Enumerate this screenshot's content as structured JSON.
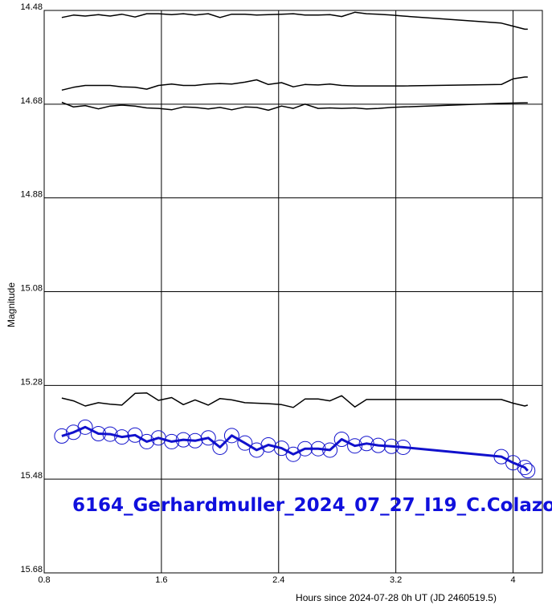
{
  "chart_data": {
    "type": "line",
    "title": "6164_Gerhardmuller_2024_07_27_I19_C.Colazo",
    "xlabel": "Hours since 2024-07-28 0h UT (JD 2460519.5)",
    "ylabel": "Magnitude",
    "xlim": [
      0.8,
      4.2
    ],
    "ylim": [
      14.48,
      15.68
    ],
    "y_inverted": true,
    "grid": true,
    "x_ticks": [
      "0.8",
      "1.6",
      "2.4",
      "3.2",
      "4"
    ],
    "y_ticks": [
      "14.48",
      "14.68",
      "14.88",
      "15.08",
      "15.28",
      "15.48",
      "15.68"
    ],
    "series": [
      {
        "color": "#000000",
        "x": [
          0.92,
          1.0,
          1.08,
          1.17,
          1.25,
          1.33,
          1.42,
          1.5,
          1.58,
          1.67,
          1.75,
          1.83,
          1.92,
          2.0,
          2.08,
          2.17,
          2.25,
          2.33,
          2.42,
          2.5,
          2.58,
          2.67,
          2.75,
          2.83,
          2.92,
          3.0,
          3.08,
          3.17,
          3.25,
          3.92,
          4.08,
          4.1
        ],
        "y": [
          14.495,
          14.49,
          14.492,
          14.489,
          14.492,
          14.488,
          14.494,
          14.487,
          14.487,
          14.489,
          14.487,
          14.49,
          14.487,
          14.495,
          14.488,
          14.488,
          14.49,
          14.489,
          14.488,
          14.487,
          14.49,
          14.49,
          14.489,
          14.493,
          14.484,
          14.487,
          14.488,
          14.49,
          14.492,
          14.507,
          14.52,
          14.52
        ]
      },
      {
        "color": "#000000",
        "x": [
          0.92,
          1.0,
          1.08,
          1.17,
          1.25,
          1.33,
          1.42,
          1.5,
          1.58,
          1.67,
          1.75,
          1.83,
          1.92,
          2.0,
          2.08,
          2.17,
          2.25,
          2.33,
          2.42,
          2.5,
          2.58,
          2.67,
          2.75,
          2.83,
          2.92,
          3.0,
          3.08,
          3.17,
          3.25,
          3.92,
          4.0,
          4.08,
          4.1
        ],
        "y": [
          14.65,
          14.644,
          14.64,
          14.64,
          14.64,
          14.643,
          14.644,
          14.648,
          14.64,
          14.637,
          14.64,
          14.64,
          14.637,
          14.636,
          14.637,
          14.633,
          14.628,
          14.638,
          14.634,
          14.643,
          14.638,
          14.639,
          14.637,
          14.64,
          14.641,
          14.641,
          14.641,
          14.641,
          14.641,
          14.638,
          14.626,
          14.622,
          14.622
        ]
      },
      {
        "color": "#000000",
        "x": [
          0.92,
          1.0,
          1.08,
          1.17,
          1.25,
          1.33,
          1.42,
          1.5,
          1.58,
          1.67,
          1.75,
          1.83,
          1.92,
          2.0,
          2.08,
          2.17,
          2.25,
          2.33,
          2.42,
          2.5,
          2.58,
          2.67,
          2.75,
          2.83,
          2.92,
          3.0,
          3.08,
          3.17,
          3.25,
          3.92,
          4.08,
          4.1
        ],
        "y": [
          14.676,
          14.686,
          14.683,
          14.69,
          14.684,
          14.682,
          14.684,
          14.688,
          14.689,
          14.692,
          14.686,
          14.687,
          14.69,
          14.687,
          14.692,
          14.686,
          14.687,
          14.693,
          14.684,
          14.689,
          14.68,
          14.689,
          14.688,
          14.689,
          14.688,
          14.69,
          14.689,
          14.687,
          14.686,
          14.678,
          14.677,
          14.677
        ]
      },
      {
        "color": "#000000",
        "x": [
          0.92,
          1.0,
          1.08,
          1.17,
          1.25,
          1.33,
          1.42,
          1.5,
          1.58,
          1.67,
          1.75,
          1.83,
          1.92,
          2.0,
          2.08,
          2.17,
          2.25,
          2.33,
          2.42,
          2.5,
          2.58,
          2.67,
          2.75,
          2.83,
          2.92,
          3.0,
          3.08,
          3.17,
          3.25,
          3.92,
          4.0,
          4.08,
          4.1
        ],
        "y": [
          15.307,
          15.313,
          15.324,
          15.317,
          15.32,
          15.322,
          15.297,
          15.296,
          15.312,
          15.306,
          15.321,
          15.311,
          15.322,
          15.308,
          15.311,
          15.317,
          15.318,
          15.319,
          15.321,
          15.327,
          15.309,
          15.309,
          15.313,
          15.302,
          15.326,
          15.31,
          15.31,
          15.31,
          15.31,
          15.31,
          15.318,
          15.324,
          15.322
        ]
      },
      {
        "color": "#1111cc",
        "marker": "circle",
        "x": [
          0.92,
          1.0,
          1.08,
          1.17,
          1.25,
          1.33,
          1.42,
          1.5,
          1.58,
          1.67,
          1.75,
          1.83,
          1.92,
          2.0,
          2.08,
          2.17,
          2.25,
          2.33,
          2.42,
          2.5,
          2.58,
          2.67,
          2.75,
          2.83,
          2.92,
          3.0,
          3.08,
          3.17,
          3.25,
          3.92,
          4.0,
          4.08,
          4.1
        ],
        "y": [
          15.388,
          15.38,
          15.369,
          15.383,
          15.384,
          15.39,
          15.386,
          15.4,
          15.392,
          15.4,
          15.396,
          15.398,
          15.392,
          15.412,
          15.387,
          15.403,
          15.418,
          15.407,
          15.414,
          15.427,
          15.415,
          15.415,
          15.418,
          15.395,
          15.409,
          15.404,
          15.408,
          15.41,
          15.412,
          15.432,
          15.445,
          15.455,
          15.462
        ]
      }
    ]
  }
}
